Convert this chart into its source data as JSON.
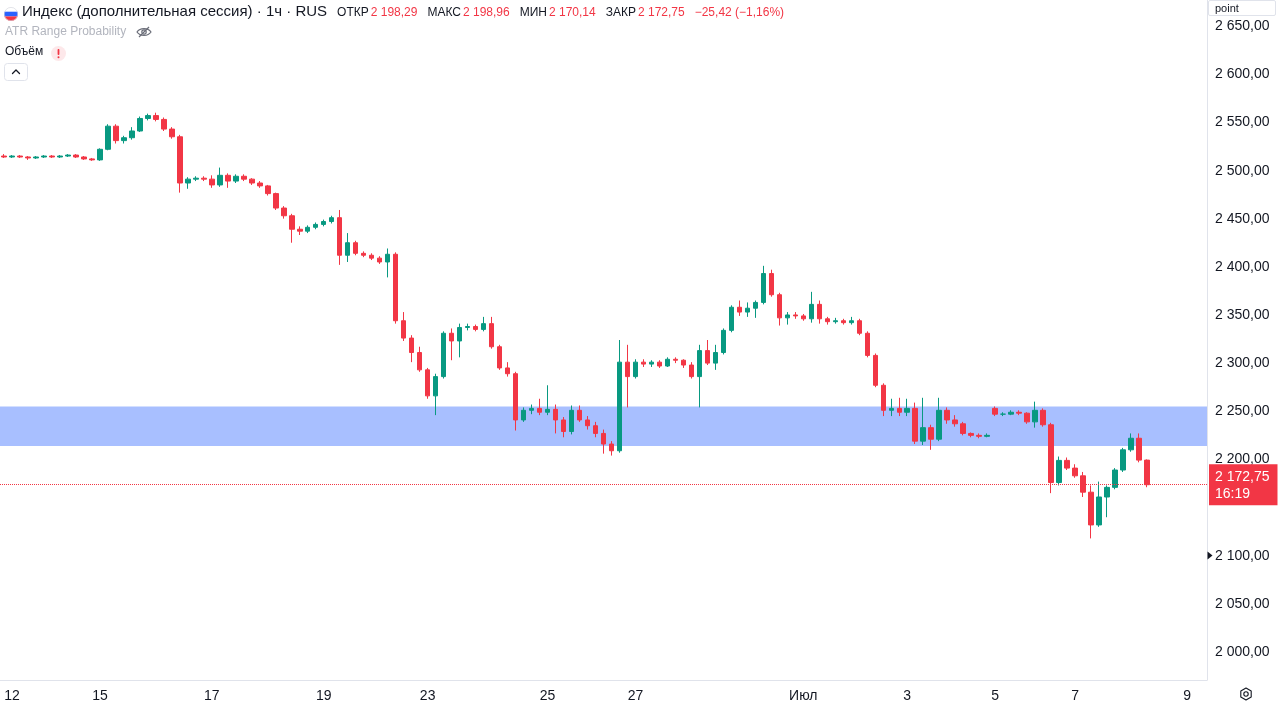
{
  "chart_data": {
    "type": "candlestick",
    "title": "Индекс (дополнительная сессия) · 1ч · RUS",
    "annotations": [
      "ОТКР",
      "2 198,29",
      "МАКС",
      "2 198,96",
      "МИН",
      "2 170,14",
      "ЗАКР",
      "2 172,75",
      "−25,42 (−1,16%)",
      "ATR Range Probability",
      "Объём",
      "point"
    ],
    "categories": [
      null,
      "12",
      null,
      null,
      null,
      null,
      null,
      null,
      null,
      null,
      null,
      null,
      "15",
      null,
      null,
      null,
      null,
      null,
      null,
      null,
      null,
      null,
      null,
      null,
      null,
      null,
      "17",
      null,
      null,
      null,
      null,
      null,
      null,
      null,
      null,
      null,
      null,
      null,
      null,
      null,
      "19",
      null,
      null,
      null,
      null,
      null,
      null,
      null,
      null,
      null,
      null,
      null,
      null,
      "23",
      null,
      null,
      null,
      null,
      null,
      null,
      null,
      null,
      null,
      null,
      null,
      null,
      null,
      null,
      "25",
      null,
      null,
      null,
      null,
      null,
      null,
      null,
      null,
      null,
      null,
      "27",
      null,
      null,
      null,
      null,
      null,
      null,
      null,
      null,
      null,
      null,
      null,
      null,
      null,
      null,
      null,
      null,
      null,
      null,
      null,
      null,
      "Июл",
      null,
      null,
      null,
      null,
      null,
      null,
      null,
      null,
      null,
      null,
      null,
      null,
      "3",
      null,
      null,
      null,
      null,
      null,
      null,
      null,
      null,
      null,
      null,
      "5",
      null,
      null,
      null,
      null,
      null,
      null,
      null,
      null,
      null,
      "7",
      null,
      null,
      null,
      null,
      null,
      null,
      null,
      null,
      null,
      null,
      null,
      null,
      null,
      "9",
      null,
      null
    ],
    "ohlc": [
      [
        2514,
        2516,
        2512,
        2513
      ],
      [
        2513,
        2515,
        2512,
        2514
      ],
      [
        2514,
        2515,
        2512,
        2513
      ],
      [
        2513,
        2514,
        2510,
        2512
      ],
      [
        2512,
        2514,
        2511,
        2513
      ],
      [
        2513,
        2515,
        2512,
        2514
      ],
      [
        2514,
        2515,
        2512,
        2513
      ],
      [
        2513,
        2515,
        2512,
        2514
      ],
      [
        2514,
        2516,
        2513,
        2515
      ],
      [
        2515,
        2516,
        2512,
        2513
      ],
      [
        2513,
        2514,
        2510,
        2511
      ],
      [
        2511,
        2512,
        2509,
        2510
      ],
      [
        2510,
        2522,
        2509,
        2521
      ],
      [
        2521,
        2547,
        2520,
        2545
      ],
      [
        2545,
        2547,
        2527,
        2530
      ],
      [
        2530,
        2535,
        2527,
        2533
      ],
      [
        2533,
        2544,
        2531,
        2540
      ],
      [
        2540,
        2555,
        2539,
        2553
      ],
      [
        2553,
        2558,
        2551,
        2556
      ],
      [
        2556,
        2559,
        2550,
        2552
      ],
      [
        2552,
        2554,
        2540,
        2542
      ],
      [
        2542,
        2544,
        2532,
        2534
      ],
      [
        2534,
        2536,
        2476,
        2486
      ],
      [
        2486,
        2492,
        2480,
        2490
      ],
      [
        2490,
        2493,
        2488,
        2491
      ],
      [
        2491,
        2493,
        2488,
        2490
      ],
      [
        2490,
        2494,
        2481,
        2484
      ],
      [
        2484,
        2502,
        2482,
        2494
      ],
      [
        2494,
        2496,
        2481,
        2488
      ],
      [
        2488,
        2495,
        2486,
        2493
      ],
      [
        2493,
        2495,
        2488,
        2490
      ],
      [
        2490,
        2491,
        2484,
        2486
      ],
      [
        2486,
        2488,
        2481,
        2483
      ],
      [
        2483,
        2484,
        2473,
        2475
      ],
      [
        2475,
        2476,
        2458,
        2460
      ],
      [
        2460,
        2462,
        2449,
        2452
      ],
      [
        2452,
        2454,
        2424,
        2438
      ],
      [
        2438,
        2441,
        2432,
        2436
      ],
      [
        2436,
        2442,
        2434,
        2440
      ],
      [
        2440,
        2445,
        2438,
        2443
      ],
      [
        2443,
        2448,
        2441,
        2446
      ],
      [
        2446,
        2452,
        2444,
        2450
      ],
      [
        2450,
        2458,
        2401,
        2411
      ],
      [
        2411,
        2434,
        2404,
        2424
      ],
      [
        2424,
        2426,
        2411,
        2413
      ],
      [
        2413,
        2415,
        2409,
        2411
      ],
      [
        2411,
        2413,
        2406,
        2408
      ],
      [
        2408,
        2410,
        2402,
        2404
      ],
      [
        2404,
        2418,
        2388,
        2412
      ],
      [
        2412,
        2414,
        2340,
        2343
      ],
      [
        2343,
        2352,
        2322,
        2325
      ],
      [
        2325,
        2328,
        2300,
        2310
      ],
      [
        2310,
        2316,
        2290,
        2292
      ],
      [
        2292,
        2294,
        2262,
        2265
      ],
      [
        2265,
        2288,
        2245,
        2285
      ],
      [
        2285,
        2332,
        2283,
        2330
      ],
      [
        2330,
        2335,
        2302,
        2322
      ],
      [
        2322,
        2340,
        2305,
        2336
      ],
      [
        2336,
        2340,
        2333,
        2337
      ],
      [
        2337,
        2339,
        2332,
        2334
      ],
      [
        2334,
        2347,
        2332,
        2340
      ],
      [
        2340,
        2347,
        2314,
        2316
      ],
      [
        2316,
        2318,
        2292,
        2294
      ],
      [
        2294,
        2300,
        2285,
        2288
      ],
      [
        2288,
        2290,
        2229,
        2240
      ],
      [
        2240,
        2253,
        2238,
        2250
      ],
      [
        2250,
        2256,
        2246,
        2252
      ],
      [
        2252,
        2262,
        2245,
        2248
      ],
      [
        2248,
        2276,
        2245,
        2251
      ],
      [
        2251,
        2256,
        2226,
        2240
      ],
      [
        2240,
        2243,
        2222,
        2228
      ],
      [
        2228,
        2255,
        2225,
        2250
      ],
      [
        2250,
        2255,
        2238,
        2240
      ],
      [
        2240,
        2244,
        2230,
        2234
      ],
      [
        2234,
        2238,
        2222,
        2226
      ],
      [
        2226,
        2230,
        2205,
        2215
      ],
      [
        2215,
        2218,
        2203,
        2208
      ],
      [
        2208,
        2323,
        2206,
        2300
      ],
      [
        2300,
        2318,
        2253,
        2285
      ],
      [
        2285,
        2303,
        2283,
        2300
      ],
      [
        2300,
        2303,
        2295,
        2298
      ],
      [
        2298,
        2302,
        2295,
        2300
      ],
      [
        2300,
        2302,
        2294,
        2296
      ],
      [
        2296,
        2305,
        2295,
        2303
      ],
      [
        2303,
        2305,
        2299,
        2302
      ],
      [
        2302,
        2303,
        2294,
        2297
      ],
      [
        2297,
        2300,
        2283,
        2285
      ],
      [
        2285,
        2318,
        2253,
        2312
      ],
      [
        2312,
        2323,
        2297,
        2299
      ],
      [
        2299,
        2318,
        2292,
        2310
      ],
      [
        2310,
        2335,
        2308,
        2333
      ],
      [
        2333,
        2359,
        2331,
        2357
      ],
      [
        2357,
        2364,
        2348,
        2352
      ],
      [
        2352,
        2362,
        2347,
        2356
      ],
      [
        2356,
        2364,
        2346,
        2362
      ],
      [
        2362,
        2400,
        2360,
        2392
      ],
      [
        2392,
        2396,
        2368,
        2370
      ],
      [
        2370,
        2372,
        2338,
        2346
      ],
      [
        2346,
        2352,
        2339,
        2349
      ],
      [
        2349,
        2352,
        2345,
        2348
      ],
      [
        2348,
        2350,
        2343,
        2345
      ],
      [
        2345,
        2373,
        2341,
        2360
      ],
      [
        2360,
        2364,
        2340,
        2345
      ],
      [
        2345,
        2347,
        2339,
        2342
      ],
      [
        2342,
        2346,
        2340,
        2343
      ],
      [
        2343,
        2345,
        2339,
        2341
      ],
      [
        2341,
        2347,
        2339,
        2343
      ],
      [
        2343,
        2345,
        2328,
        2330
      ],
      [
        2330,
        2332,
        2305,
        2307
      ],
      [
        2307,
        2309,
        2274,
        2276
      ],
      [
        2276,
        2278,
        2244,
        2250
      ],
      [
        2250,
        2262,
        2244,
        2252
      ],
      [
        2252,
        2263,
        2244,
        2248
      ],
      [
        2248,
        2262,
        2244,
        2252
      ],
      [
        2252,
        2258,
        2215,
        2218
      ],
      [
        2218,
        2263,
        2214,
        2232
      ],
      [
        2232,
        2235,
        2209,
        2220
      ],
      [
        2220,
        2263,
        2218,
        2250
      ],
      [
        2250,
        2253,
        2236,
        2240
      ],
      [
        2240,
        2245,
        2233,
        2236
      ],
      [
        2236,
        2238,
        2224,
        2226
      ],
      [
        2226,
        2227,
        2222,
        2224
      ],
      [
        2224,
        2226,
        2221,
        2223
      ],
      [
        2223,
        2226,
        2222,
        2224
      ],
      [
        2252,
        2254,
        2244,
        2246
      ],
      [
        2246,
        2248,
        2244,
        2246
      ],
      [
        2246,
        2250,
        2245,
        2248
      ],
      [
        2248,
        2250,
        2245,
        2247
      ],
      [
        2247,
        2248,
        2236,
        2238
      ],
      [
        2238,
        2259,
        2232,
        2250
      ],
      [
        2250,
        2252,
        2233,
        2235
      ],
      [
        2235,
        2237,
        2164,
        2175
      ],
      [
        2175,
        2202,
        2172,
        2198
      ],
      [
        2198,
        2201,
        2188,
        2190
      ],
      [
        2190,
        2194,
        2180,
        2182
      ],
      [
        2182,
        2186,
        2160,
        2165
      ],
      [
        2165,
        2172,
        2117,
        2131
      ],
      [
        2131,
        2176,
        2129,
        2160
      ],
      [
        2160,
        2172,
        2139,
        2170
      ],
      [
        2170,
        2190,
        2168,
        2188
      ],
      [
        2188,
        2211,
        2186,
        2209
      ],
      [
        2209,
        2226,
        2207,
        2221
      ],
      [
        2221,
        2226,
        2196,
        2198.29
      ],
      [
        2198.29,
        2198.96,
        2170.14,
        2172.75
      ],
      null,
      null,
      null,
      null,
      null,
      null,
      null
    ],
    "colors": [
      "#f23645",
      "#089981",
      "#f23645",
      "#f23645",
      "#089981",
      "#089981",
      "#f23645",
      "#089981",
      "#089981",
      "#f23645",
      "#f23645",
      "#f23645",
      "#089981",
      "#089981",
      "#f23645",
      "#089981",
      "#089981",
      "#089981",
      "#089981",
      "#f23645",
      "#f23645",
      "#f23645",
      "#f23645",
      "#089981",
      "#089981",
      "#f23645",
      "#f23645",
      "#089981",
      "#f23645",
      "#089981",
      "#f23645",
      "#f23645",
      "#f23645",
      "#f23645",
      "#f23645",
      "#f23645",
      "#f23645",
      "#f23645",
      "#089981",
      "#089981",
      "#089981",
      "#089981",
      "#f23645",
      "#089981",
      "#f23645",
      "#f23645",
      "#f23645",
      "#f23645",
      "#089981",
      "#f23645",
      "#f23645",
      "#f23645",
      "#f23645",
      "#f23645",
      "#089981",
      "#089981",
      "#f23645",
      "#089981",
      "#089981",
      "#f23645",
      "#089981",
      "#f23645",
      "#f23645",
      "#f23645",
      "#f23645",
      "#089981",
      "#089981",
      "#f23645",
      "#089981",
      "#f23645",
      "#f23645",
      "#089981",
      "#f23645",
      "#f23645",
      "#f23645",
      "#f23645",
      "#f23645",
      "#089981",
      "#f23645",
      "#089981",
      "#f23645",
      "#089981",
      "#f23645",
      "#089981",
      "#f23645",
      "#f23645",
      "#f23645",
      "#089981",
      "#f23645",
      "#089981",
      "#089981",
      "#089981",
      "#f23645",
      "#089981",
      "#089981",
      "#089981",
      "#f23645",
      "#f23645",
      "#089981",
      "#f23645",
      "#f23645",
      "#089981",
      "#f23645",
      "#f23645",
      "#089981",
      "#f23645",
      "#089981",
      "#f23645",
      "#f23645",
      "#f23645",
      "#f23645",
      "#089981",
      "#f23645",
      "#089981",
      "#f23645",
      "#089981",
      "#f23645",
      "#089981",
      "#f23645",
      "#f23645",
      "#f23645",
      "#f23645",
      "#f23645",
      "#089981",
      "#f23645",
      "#089981",
      "#089981",
      "#f23645",
      "#f23645",
      "#089981",
      "#f23645",
      "#f23645",
      "#089981",
      "#f23645",
      "#f23645",
      "#f23645",
      "#f23645",
      "#089981",
      "#089981",
      "#089981",
      "#089981",
      "#089981",
      "#f23645",
      "#f23645",
      null,
      null,
      null,
      null,
      null,
      null,
      null
    ],
    "ylim": [
      1970,
      2676
    ],
    "yticks": [
      {
        "value": 2000,
        "label": "2 000,00"
      },
      {
        "value": 2050,
        "label": "2 050,00"
      },
      {
        "value": 2100,
        "label": "2 100,00"
      },
      {
        "value": 2200,
        "label": "2 200,00"
      },
      {
        "value": 2250,
        "label": "2 250,00"
      },
      {
        "value": 2300,
        "label": "2 300,00"
      },
      {
        "value": 2350,
        "label": "2 350,00"
      },
      {
        "value": 2400,
        "label": "2 400,00"
      },
      {
        "value": 2450,
        "label": "2 450,00"
      },
      {
        "value": 2500,
        "label": "2 500,00"
      },
      {
        "value": 2550,
        "label": "2 550,00"
      },
      {
        "value": 2600,
        "label": "2 600,00"
      },
      {
        "value": 2650,
        "label": "2 650,00"
      }
    ],
    "ref_lines": [
      {
        "axis": "y",
        "value": 2172.75,
        "label": "2 172,75\n16:19",
        "color": "#f23645",
        "line_style": "dotted"
      }
    ],
    "bands": [
      {
        "axis": "y",
        "from": 2213,
        "to": 2254,
        "color": "#a8bfff"
      }
    ]
  }
}
